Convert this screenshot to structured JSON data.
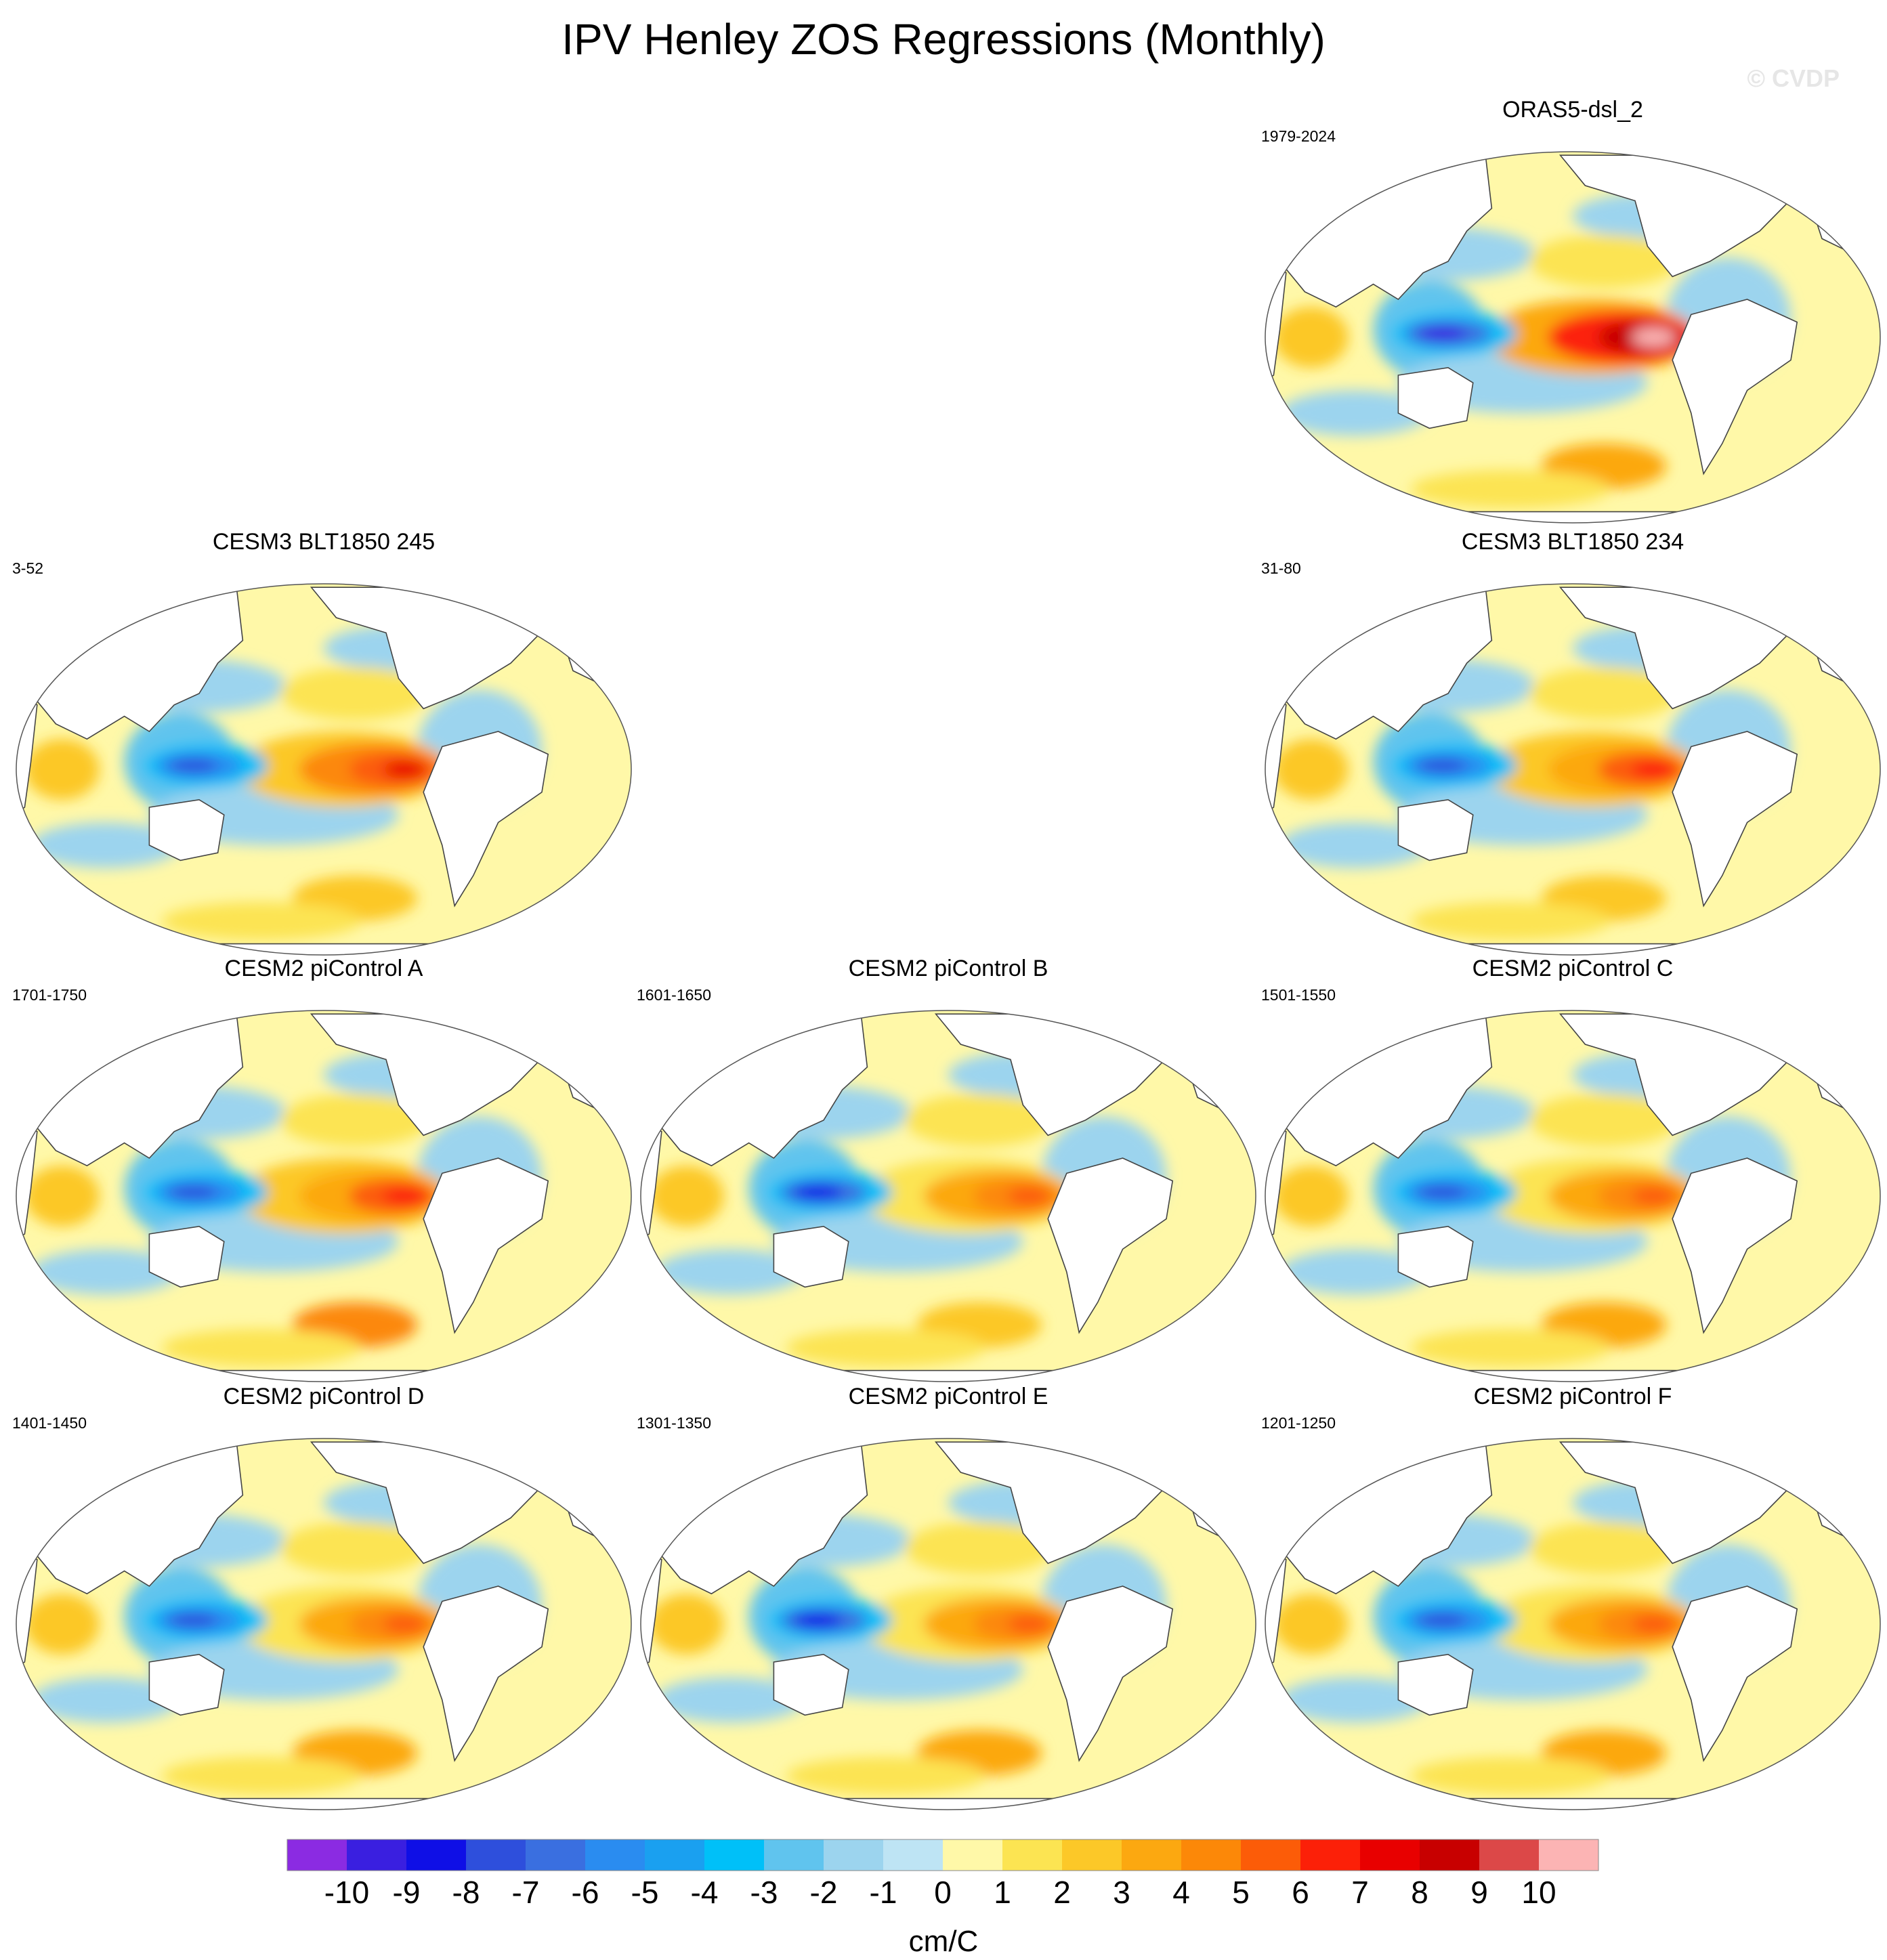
{
  "figure": {
    "title": "IPV Henley ZOS Regressions (Monthly)",
    "watermark": "© CVDP"
  },
  "chart_data": {
    "type": "contour-map",
    "projection": "Robinson (Pacific-centered)",
    "variable": "ZOS regression onto IPV Henley index",
    "units": "cm/C",
    "panels": [
      {
        "id": "oras5",
        "title": "ORAS5-dsl_2",
        "period": "1979-2024",
        "row": 0,
        "col": 2,
        "center_max": 10,
        "west_min": -10,
        "south_max": 4
      },
      {
        "id": "cesm3-245",
        "title": "CESM3 BLT1850 245",
        "period": "3-52",
        "row": 1,
        "col": 0,
        "center_max": 7,
        "west_min": -8,
        "south_max": 3
      },
      {
        "id": "cesm3-234",
        "title": "CESM3 BLT1850 234",
        "period": "31-80",
        "row": 1,
        "col": 2,
        "center_max": 6,
        "west_min": -8,
        "south_max": 3
      },
      {
        "id": "cesm2-a",
        "title": "CESM2 piControl A",
        "period": "1701-1750",
        "row": 2,
        "col": 0,
        "center_max": 6,
        "west_min": -8,
        "south_max": 5
      },
      {
        "id": "cesm2-b",
        "title": "CESM2 piControl B",
        "period": "1601-1650",
        "row": 2,
        "col": 1,
        "center_max": 5,
        "west_min": -9,
        "south_max": 3
      },
      {
        "id": "cesm2-c",
        "title": "CESM2 piControl C",
        "period": "1501-1550",
        "row": 2,
        "col": 2,
        "center_max": 5,
        "west_min": -8,
        "south_max": 4
      },
      {
        "id": "cesm2-d",
        "title": "CESM2 piControl D",
        "period": "1401-1450",
        "row": 3,
        "col": 0,
        "center_max": 5,
        "west_min": -8,
        "south_max": 4
      },
      {
        "id": "cesm2-e",
        "title": "CESM2 piControl E",
        "period": "1301-1350",
        "row": 3,
        "col": 1,
        "center_max": 5,
        "west_min": -9,
        "south_max": 4
      },
      {
        "id": "cesm2-f",
        "title": "CESM2 piControl F",
        "period": "1201-1250",
        "row": 3,
        "col": 2,
        "center_max": 5,
        "west_min": -8,
        "south_max": 4
      }
    ],
    "colorbar": {
      "unit_label": "cm/C",
      "tick_labels": [
        "-10",
        "-9",
        "-8",
        "-7",
        "-6",
        "-5",
        "-4",
        "-3",
        "-2",
        "-1",
        "0",
        "1",
        "2",
        "3",
        "4",
        "5",
        "6",
        "7",
        "8",
        "9",
        "10"
      ],
      "colors": [
        "#8b2be2",
        "#3a1fe0",
        "#0f0fe6",
        "#2e4fdc",
        "#3a6fe0",
        "#2a8cf0",
        "#1aa0f0",
        "#00c0f8",
        "#60c4ee",
        "#9cd4ee",
        "#bee4f4",
        "#fff8a8",
        "#fce452",
        "#fcc828",
        "#fca810",
        "#fc8808",
        "#fc5c08",
        "#fc2008",
        "#e80000",
        "#c80000",
        "#dc4848",
        "#fcb4b4"
      ]
    }
  }
}
